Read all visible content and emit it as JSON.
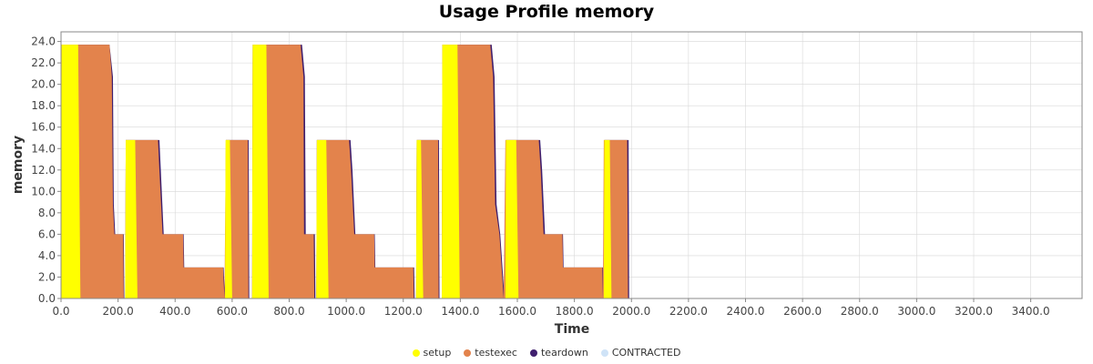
{
  "chart_data": {
    "type": "area",
    "title": "Usage Profile memory",
    "xlabel": "Time",
    "ylabel": "memory",
    "xlim": [
      0,
      3580
    ],
    "ylim": [
      0,
      24.9
    ],
    "x_ticks": [
      "0.0",
      "200.0",
      "400.0",
      "600.0",
      "800.0",
      "1000.0",
      "1200.0",
      "1400.0",
      "1600.0",
      "1800.0",
      "2000.0",
      "2200.0",
      "2400.0",
      "2600.0",
      "2800.0",
      "3000.0",
      "3200.0",
      "3400.0"
    ],
    "x_tick_values": [
      0,
      200,
      400,
      600,
      800,
      1000,
      1200,
      1400,
      1600,
      1800,
      2000,
      2200,
      2400,
      2600,
      2800,
      3000,
      3200,
      3400
    ],
    "y_ticks": [
      "0.0",
      "2.0",
      "4.0",
      "6.0",
      "8.0",
      "10.0",
      "12.0",
      "14.0",
      "16.0",
      "18.0",
      "20.0",
      "22.0",
      "24.0"
    ],
    "y_tick_values": [
      0,
      2,
      4,
      6,
      8,
      10,
      12,
      14,
      16,
      18,
      20,
      22,
      24
    ],
    "grid": true,
    "legend_position": "bottom",
    "series": [
      {
        "name": "teardown",
        "color": "#3f1f6e",
        "points": [
          [
            0,
            0
          ],
          [
            2,
            23.7
          ],
          [
            170,
            23.7
          ],
          [
            182,
            20.7
          ],
          [
            185,
            8.8
          ],
          [
            190,
            6
          ],
          [
            220,
            6
          ],
          [
            222,
            0
          ],
          [
            225,
            0
          ],
          [
            227,
            14.8
          ],
          [
            345,
            14.8
          ],
          [
            350,
            11.9
          ],
          [
            360,
            6
          ],
          [
            430,
            6
          ],
          [
            432,
            2.9
          ],
          [
            570,
            2.9
          ],
          [
            575,
            0
          ],
          [
            578,
            14.8
          ],
          [
            658,
            14.8
          ],
          [
            660,
            0
          ],
          [
            670,
            0
          ],
          [
            672,
            23.7
          ],
          [
            845,
            23.7
          ],
          [
            855,
            20.7
          ],
          [
            858,
            6
          ],
          [
            890,
            6
          ],
          [
            892,
            0
          ],
          [
            895,
            0
          ],
          [
            897,
            14.8
          ],
          [
            1015,
            14.8
          ],
          [
            1022,
            11.9
          ],
          [
            1032,
            6
          ],
          [
            1100,
            6
          ],
          [
            1102,
            2.9
          ],
          [
            1238,
            2.9
          ],
          [
            1240,
            0
          ],
          [
            1245,
            0
          ],
          [
            1247,
            14.8
          ],
          [
            1325,
            14.8
          ],
          [
            1327,
            0
          ],
          [
            1335,
            0
          ],
          [
            1337,
            23.7
          ],
          [
            1510,
            23.7
          ],
          [
            1520,
            20.7
          ],
          [
            1527,
            8.8
          ],
          [
            1540,
            6
          ],
          [
            1555,
            0
          ],
          [
            1560,
            14.8
          ],
          [
            1680,
            14.8
          ],
          [
            1687,
            11.9
          ],
          [
            1697,
            6
          ],
          [
            1760,
            6
          ],
          [
            1762,
            2.9
          ],
          [
            1900,
            2.9
          ],
          [
            1902,
            0
          ],
          [
            1905,
            14.8
          ],
          [
            1990,
            14.8
          ],
          [
            1992,
            0
          ],
          [
            3580,
            0
          ]
        ]
      },
      {
        "name": "testexec",
        "color": "#e3834c",
        "points": [
          [
            0,
            0
          ],
          [
            2,
            23.7
          ],
          [
            170,
            23.7
          ],
          [
            178,
            20.7
          ],
          [
            182,
            8.8
          ],
          [
            187,
            6
          ],
          [
            218,
            6
          ],
          [
            220,
            0
          ],
          [
            225,
            0
          ],
          [
            227,
            14.8
          ],
          [
            340,
            14.8
          ],
          [
            345,
            11.9
          ],
          [
            356,
            6
          ],
          [
            428,
            6
          ],
          [
            430,
            2.9
          ],
          [
            568,
            2.9
          ],
          [
            573,
            0
          ],
          [
            578,
            14.8
          ],
          [
            655,
            14.8
          ],
          [
            657,
            0
          ],
          [
            670,
            0
          ],
          [
            672,
            23.7
          ],
          [
            840,
            23.7
          ],
          [
            850,
            20.7
          ],
          [
            852,
            6
          ],
          [
            886,
            6
          ],
          [
            888,
            0
          ],
          [
            895,
            0
          ],
          [
            897,
            14.8
          ],
          [
            1010,
            14.8
          ],
          [
            1017,
            11.9
          ],
          [
            1028,
            6
          ],
          [
            1098,
            6
          ],
          [
            1100,
            2.9
          ],
          [
            1235,
            2.9
          ],
          [
            1237,
            0
          ],
          [
            1245,
            0
          ],
          [
            1247,
            14.8
          ],
          [
            1322,
            14.8
          ],
          [
            1324,
            0
          ],
          [
            1335,
            0
          ],
          [
            1337,
            23.7
          ],
          [
            1505,
            23.7
          ],
          [
            1515,
            20.7
          ],
          [
            1522,
            8.8
          ],
          [
            1537,
            6
          ],
          [
            1552,
            0
          ],
          [
            1558,
            14.8
          ],
          [
            1675,
            14.8
          ],
          [
            1682,
            11.9
          ],
          [
            1692,
            6
          ],
          [
            1758,
            6
          ],
          [
            1760,
            2.9
          ],
          [
            1898,
            2.9
          ],
          [
            1900,
            0
          ],
          [
            1903,
            14.8
          ],
          [
            1985,
            14.8
          ],
          [
            1988,
            0
          ],
          [
            3580,
            0
          ]
        ]
      },
      {
        "name": "setup",
        "color": "#ffff00",
        "points": [
          [
            0,
            0
          ],
          [
            2,
            23.7
          ],
          [
            60,
            23.7
          ],
          [
            68,
            0
          ],
          [
            225,
            0
          ],
          [
            227,
            14.8
          ],
          [
            260,
            14.8
          ],
          [
            268,
            0
          ],
          [
            575,
            0
          ],
          [
            577,
            14.8
          ],
          [
            592,
            14.8
          ],
          [
            600,
            0
          ],
          [
            670,
            0
          ],
          [
            672,
            23.7
          ],
          [
            720,
            23.7
          ],
          [
            728,
            0
          ],
          [
            895,
            0
          ],
          [
            897,
            14.8
          ],
          [
            930,
            14.8
          ],
          [
            938,
            0
          ],
          [
            1245,
            0
          ],
          [
            1247,
            14.8
          ],
          [
            1262,
            14.8
          ],
          [
            1270,
            0
          ],
          [
            1335,
            0
          ],
          [
            1337,
            23.7
          ],
          [
            1390,
            23.7
          ],
          [
            1398,
            0
          ],
          [
            1558,
            0
          ],
          [
            1560,
            14.8
          ],
          [
            1596,
            14.8
          ],
          [
            1604,
            0
          ],
          [
            1903,
            0
          ],
          [
            1905,
            14.8
          ],
          [
            1924,
            14.8
          ],
          [
            1930,
            0
          ],
          [
            3580,
            0
          ]
        ]
      },
      {
        "name": "CONTRACTED",
        "color": "#cfe3f7",
        "points": [
          [
            0,
            0
          ],
          [
            3580,
            0
          ]
        ]
      }
    ]
  }
}
